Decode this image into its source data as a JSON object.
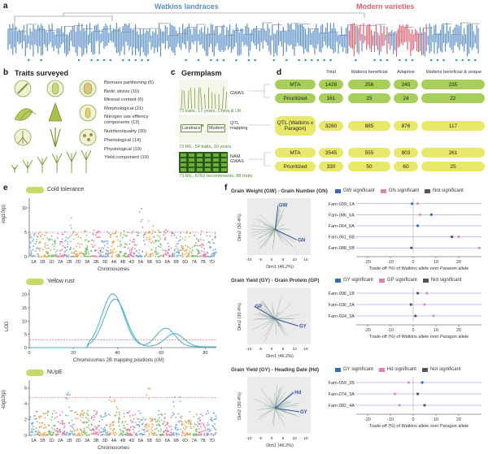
{
  "panel_a": {
    "label": "a",
    "left_title": "Watkins landraces",
    "right_title": "Modern varieties",
    "colors": {
      "landrace": "#5b8fc9",
      "modern": "#e06070",
      "dot": "#3aa776"
    }
  },
  "panel_b": {
    "label": "b",
    "title": "Traits surveyed",
    "traits": [
      "Biomass partitioning (5)",
      "Biotic stress (10)",
      "Mineral content (6)",
      "Morphological (21)",
      "Nitrogen use effiency components (13)",
      "Nutrition/quality (30)",
      "Phenological (14)",
      "Physiological (19)",
      "Yield component (19)"
    ]
  },
  "panel_c": {
    "label": "c",
    "title": "Germplasm",
    "rows": [
      {
        "method": "GWAS",
        "caption": "73 traits, 17 years, China & UK"
      },
      {
        "method": "QTL mapping",
        "caption": "73 RIL, 54 traits, 10 years",
        "box_left": "Landrace",
        "box_x": "×",
        "box_right": "Modern"
      },
      {
        "method": "NAM GWAS",
        "caption": "73 RIL, 6762 recombinants, 88 traits"
      }
    ]
  },
  "panel_d": {
    "label": "d",
    "headers": [
      "Total",
      "Watkins beneficial",
      "Adaptive",
      "Watkins beneficial & unique"
    ],
    "rows": [
      {
        "label": "MTA",
        "values": [
          "1428",
          "256",
          "245",
          "235"
        ],
        "color": "green"
      },
      {
        "label": "Prioritized",
        "values": [
          "161",
          "25",
          "24",
          "22"
        ],
        "color": "green"
      },
      {
        "label": "QTL (Watkins x Paragon)",
        "values": [
          "3280",
          "885",
          "876",
          "117"
        ],
        "color": "yellow"
      },
      {
        "label": "MTA",
        "values": [
          "3545",
          "555",
          "803",
          "261"
        ],
        "color": "yellow"
      },
      {
        "label": "Prioritized",
        "values": [
          "330",
          "50",
          "60",
          "25"
        ],
        "color": "yellow"
      }
    ]
  },
  "panel_e": {
    "label": "e",
    "plot1": {
      "title": "Cold tolerance",
      "ylabel": "-log10(p)",
      "xlabel": "Chromosomes",
      "yticks": [
        "0",
        "5",
        "10"
      ]
    },
    "plot2": {
      "title": "Yellow rust",
      "ylabel": "LOD",
      "xlabel": "Chromosomes 2B mapping positions (cM)",
      "yticks": [
        "0",
        "5",
        "10",
        "15",
        "20"
      ],
      "xticks": [
        "0",
        "20",
        "40",
        "60",
        "80"
      ]
    },
    "plot3": {
      "title": "NUpE",
      "ylabel": "-log10(p)",
      "xlabel": "Chromosomes",
      "yticks": [
        "0",
        "2",
        "4",
        "6"
      ]
    },
    "chromosomes": [
      "1A",
      "1B",
      "1D",
      "2A",
      "2B",
      "2D",
      "3A",
      "3B",
      "3D",
      "4A",
      "4B",
      "4D",
      "5A",
      "5B",
      "5D",
      "6A",
      "6B",
      "6D",
      "7A",
      "7B",
      "7D"
    ]
  },
  "panel_f": {
    "label": "f",
    "pca_xlabel": "Dim1 (46.2%)",
    "pca_ylabel": "Dim2 (30.4%)",
    "pca_ticks": [
      "-10",
      "-5",
      "0",
      "5",
      "10",
      "15"
    ],
    "trade_xlabel": "Trade-off (%) of Watkins allele over Paragon allele",
    "rows": [
      {
        "title": "Grain Weight (GW) - Grain Number (GN)",
        "legend": [
          "GW significant",
          "GN significant",
          "Not significant"
        ],
        "arrows": [
          "GW",
          "GN"
        ],
        "families": [
          "Fam-039_1A",
          "Fam-086_6A",
          "Fam-064_6A",
          "Fam-061_6B",
          "Fam-088_5B"
        ],
        "xticks": [
          "-20",
          "-10",
          "0",
          "10",
          "20"
        ]
      },
      {
        "title": "Grain Yield (GY) - Grain Protein (GP)",
        "legend": [
          "GY significant",
          "GP significant",
          "Not significant"
        ],
        "arrows": [
          "GP",
          "GY"
        ],
        "families": [
          "Fam-096_1B",
          "Fam-036_2A",
          "Fam-024_3A"
        ],
        "xticks": [
          "-20",
          "-10",
          "0",
          "10",
          "20"
        ]
      },
      {
        "title": "Grain Yield (GY) - Heading Date (Hd)",
        "legend": [
          "GY significant",
          "Hd significant",
          "Not significant"
        ],
        "arrows": [
          "Hd",
          "GY"
        ],
        "families": [
          "Fam-059_2B",
          "Fam-074_3A",
          "Fam-082_4A"
        ],
        "xticks": [
          "-20",
          "-10",
          "0",
          "10",
          "20"
        ]
      }
    ],
    "colors": {
      "blue": "#2f6fb5",
      "pink": "#e080b8",
      "grey": "#555555"
    }
  }
}
